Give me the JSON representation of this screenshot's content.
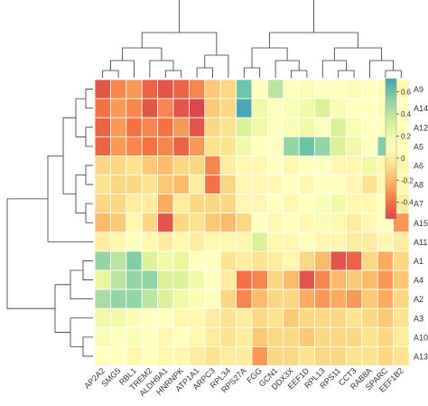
{
  "chart_data": {
    "type": "heatmap",
    "title": "",
    "xlabel": "",
    "ylabel": "",
    "columns": [
      "AP2A2",
      "SMG5",
      "RBL1",
      "TREM2",
      "ALDH9A1",
      "HNRNPK",
      "ATP1A1",
      "ARPC3",
      "RPL34",
      "RPS27A",
      "FGG",
      "GCN1",
      "DDX3X",
      "EEF1D",
      "RPL13",
      "RPS11",
      "CCT3",
      "RAB8A",
      "SPARC",
      "EEF1B2"
    ],
    "rows": [
      "A9",
      "A14",
      "A12",
      "A5",
      "A6",
      "A8",
      "A7",
      "A15",
      "A11",
      "A1",
      "A4",
      "A2",
      "A3",
      "A10",
      "A13"
    ],
    "values": [
      [
        -0.5,
        -0.35,
        -0.3,
        -0.45,
        -0.5,
        -0.45,
        -0.35,
        -0.15,
        -0.1,
        0.6,
        0.1,
        0.4,
        0.1,
        0.15,
        0.1,
        0.1,
        0.15,
        0.1,
        0.15,
        0.05
      ],
      [
        -0.4,
        -0.3,
        -0.35,
        -0.5,
        -0.35,
        -0.5,
        -0.55,
        -0.15,
        -0.1,
        0.7,
        0.2,
        0.1,
        0.15,
        0.2,
        0.3,
        0.15,
        0.1,
        0.1,
        0.15,
        0.1
      ],
      [
        -0.45,
        -0.3,
        -0.4,
        -0.35,
        -0.4,
        -0.3,
        -0.5,
        -0.1,
        -0.05,
        0.3,
        0.2,
        0.1,
        0.15,
        0.2,
        0.1,
        0.3,
        0.15,
        0.1,
        0.1,
        0.1
      ],
      [
        -0.45,
        -0.3,
        -0.35,
        -0.4,
        -0.35,
        -0.45,
        -0.3,
        -0.05,
        -0.05,
        0.2,
        0.1,
        0.1,
        0.5,
        0.6,
        0.5,
        0.3,
        0.2,
        0.1,
        0.55,
        0.1
      ],
      [
        -0.1,
        -0.1,
        -0.05,
        -0.15,
        -0.2,
        -0.1,
        -0.1,
        -0.35,
        0.0,
        0.05,
        0.05,
        0.1,
        0.05,
        0.1,
        0.1,
        0.05,
        0.05,
        0.2,
        0.05,
        0.05
      ],
      [
        -0.05,
        -0.1,
        -0.1,
        -0.05,
        -0.15,
        -0.2,
        0.0,
        -0.4,
        -0.1,
        0.05,
        0.05,
        0.05,
        0.1,
        0.05,
        0.1,
        0.1,
        0.05,
        -0.05,
        0.05,
        0.05
      ],
      [
        -0.1,
        -0.1,
        0.0,
        0.0,
        -0.25,
        0.0,
        -0.1,
        -0.1,
        -0.1,
        0.05,
        0.05,
        0.1,
        0.05,
        0.1,
        0.15,
        0.2,
        0.05,
        0.05,
        0.1,
        0.0
      ],
      [
        -0.2,
        -0.15,
        0.05,
        -0.1,
        -0.5,
        -0.1,
        -0.05,
        -0.15,
        -0.2,
        -0.1,
        0.1,
        0.05,
        0.1,
        0.05,
        0.15,
        0.05,
        0.0,
        0.05,
        0.1,
        -0.3
      ],
      [
        0.0,
        0.05,
        0.1,
        0.05,
        0.0,
        0.05,
        0.0,
        0.05,
        0.05,
        0.05,
        0.3,
        0.05,
        0.05,
        0.1,
        0.05,
        0.05,
        0.0,
        0.0,
        0.05,
        0.0
      ],
      [
        0.5,
        0.4,
        0.55,
        0.3,
        0.2,
        0.25,
        0.1,
        0.1,
        -0.05,
        0.0,
        -0.05,
        0.0,
        0.05,
        -0.1,
        -0.2,
        -0.5,
        -0.45,
        -0.1,
        -0.25,
        -0.1
      ],
      [
        0.25,
        0.4,
        0.5,
        0.5,
        0.3,
        0.3,
        0.2,
        0.1,
        0.0,
        -0.4,
        -0.35,
        -0.1,
        -0.2,
        -0.5,
        -0.35,
        -0.2,
        -0.15,
        -0.2,
        -0.3,
        -0.15
      ],
      [
        0.45,
        0.5,
        0.5,
        0.4,
        0.3,
        0.2,
        0.15,
        0.1,
        -0.1,
        -0.35,
        -0.2,
        -0.1,
        -0.1,
        -0.25,
        -0.3,
        -0.25,
        -0.3,
        -0.15,
        -0.25,
        -0.1
      ],
      [
        0.2,
        0.2,
        0.15,
        0.1,
        0.1,
        0.05,
        0.05,
        0.0,
        -0.05,
        0.0,
        -0.1,
        -0.05,
        -0.15,
        -0.1,
        -0.1,
        -0.1,
        -0.05,
        -0.1,
        -0.15,
        -0.05
      ],
      [
        0.15,
        0.1,
        0.15,
        0.1,
        0.05,
        0.1,
        0.05,
        0.0,
        -0.05,
        0.0,
        -0.15,
        -0.1,
        -0.1,
        -0.15,
        -0.1,
        -0.1,
        -0.1,
        -0.05,
        -0.1,
        0.0
      ],
      [
        0.1,
        0.1,
        0.05,
        0.1,
        0.05,
        0.05,
        0.0,
        -0.05,
        0.0,
        0.0,
        -0.3,
        -0.1,
        -0.1,
        -0.05,
        -0.1,
        -0.1,
        -0.05,
        -0.05,
        -0.1,
        -0.05
      ]
    ],
    "colorbar": {
      "min": -0.55,
      "max": 0.72,
      "ticks": [
        0.6,
        0.4,
        0.2,
        0,
        -0.2,
        -0.4
      ],
      "tick_labels": [
        "0.6",
        "0.4",
        "0.2",
        "0",
        "-0.2",
        "-0.4"
      ],
      "colormap": "Spectral"
    },
    "grid": false,
    "legend": "right"
  }
}
